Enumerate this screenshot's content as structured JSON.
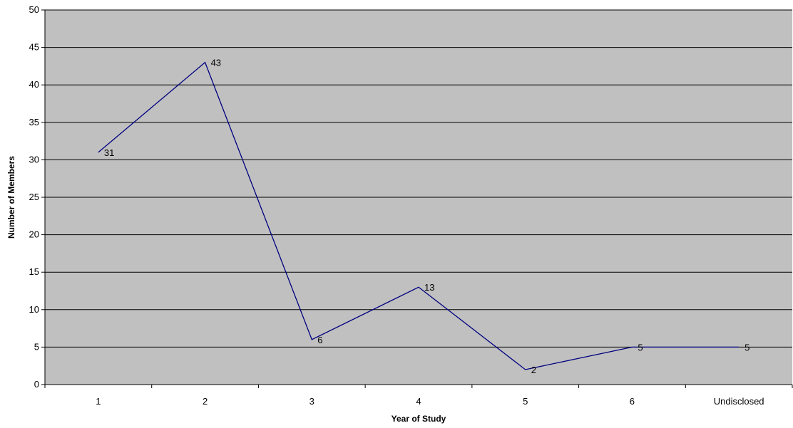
{
  "chart_data": {
    "type": "line",
    "title": "",
    "xlabel": "Year of Study",
    "ylabel": "Number of Members",
    "categories": [
      "1",
      "2",
      "3",
      "4",
      "5",
      "6",
      "Undisclosed"
    ],
    "values": [
      31,
      43,
      6,
      13,
      2,
      5,
      5
    ],
    "ylim": [
      0,
      50
    ],
    "yticks": [
      "0",
      "5",
      "10",
      "15",
      "20",
      "25",
      "30",
      "35",
      "40",
      "45",
      "50"
    ],
    "grid": true,
    "legend": "none",
    "colors": {
      "plot_background": "#c0c0c0",
      "line": "#000080",
      "gridline": "#000000",
      "axis": "#000000"
    }
  }
}
